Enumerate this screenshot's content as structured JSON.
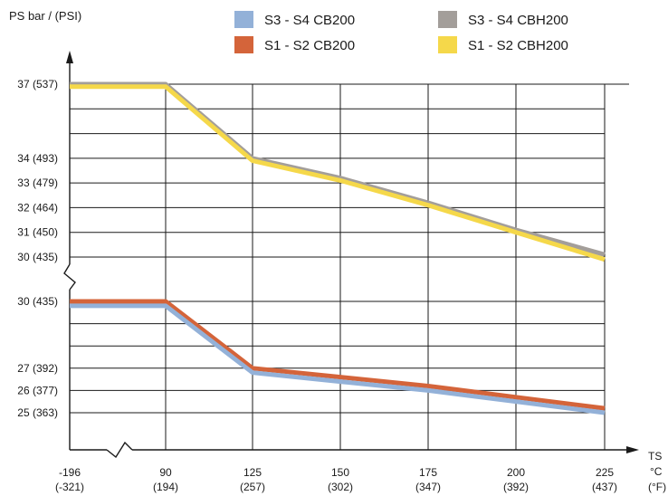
{
  "chart_data": {
    "type": "line",
    "ylabel": "PS bar / (PSI)",
    "xlabel": {
      "main": "TS",
      "unit_c": "°C",
      "unit_f": "(°F)"
    },
    "x_ticks": [
      {
        "c": "-196",
        "f": "(-321)"
      },
      {
        "c": "90",
        "f": "(194)"
      },
      {
        "c": "125",
        "f": "(257)"
      },
      {
        "c": "150",
        "f": "(302)"
      },
      {
        "c": "175",
        "f": "(347)"
      },
      {
        "c": "200",
        "f": "(392)"
      },
      {
        "c": "225",
        "f": "(437)"
      }
    ],
    "upper_panel": {
      "y_ticks": [
        {
          "value": 37,
          "label": "37 (537)"
        },
        {
          "value": 34,
          "label": "34 (493)"
        },
        {
          "value": 33,
          "label": "33 (479)"
        },
        {
          "value": 32,
          "label": "32 (464)"
        },
        {
          "value": 31,
          "label": "31 (450)"
        },
        {
          "value": 30,
          "label": "30 (435)"
        }
      ],
      "series": [
        {
          "name": "S3 - S4 CBH200",
          "color": "#a39e9a",
          "values": [
            37,
            37,
            34,
            33.2,
            32.2,
            31.1,
            30.1
          ]
        },
        {
          "name": "S1 - S2 CBH200",
          "color": "#f5d84a",
          "values": [
            36.9,
            36.9,
            33.9,
            33.1,
            32.1,
            31.0,
            29.9
          ]
        }
      ]
    },
    "lower_panel": {
      "y_ticks": [
        {
          "value": 30,
          "label": "30 (435)"
        },
        {
          "value": 27,
          "label": "27 (392)"
        },
        {
          "value": 26,
          "label": "26 (377)"
        },
        {
          "value": 25,
          "label": "25 (363)"
        }
      ],
      "series": [
        {
          "name": "S1 - S2 CB200",
          "color": "#d4643a",
          "values": [
            30,
            30,
            27,
            26.6,
            26.2,
            25.7,
            25.2
          ]
        },
        {
          "name": "S3 - S4 CB200",
          "color": "#93b1d8",
          "values": [
            29.8,
            29.8,
            26.8,
            26.4,
            26.0,
            25.5,
            25.0
          ]
        }
      ]
    },
    "legend": [
      {
        "name": "S3 - S4 CB200",
        "color": "#93b1d8"
      },
      {
        "name": "S3 - S4 CBH200",
        "color": "#a39e9a"
      },
      {
        "name": "S1 - S2 CB200",
        "color": "#d4643a"
      },
      {
        "name": "S1 - S2 CBH200",
        "color": "#f5d84a"
      }
    ],
    "grid": true,
    "legend_position": "top-right"
  }
}
